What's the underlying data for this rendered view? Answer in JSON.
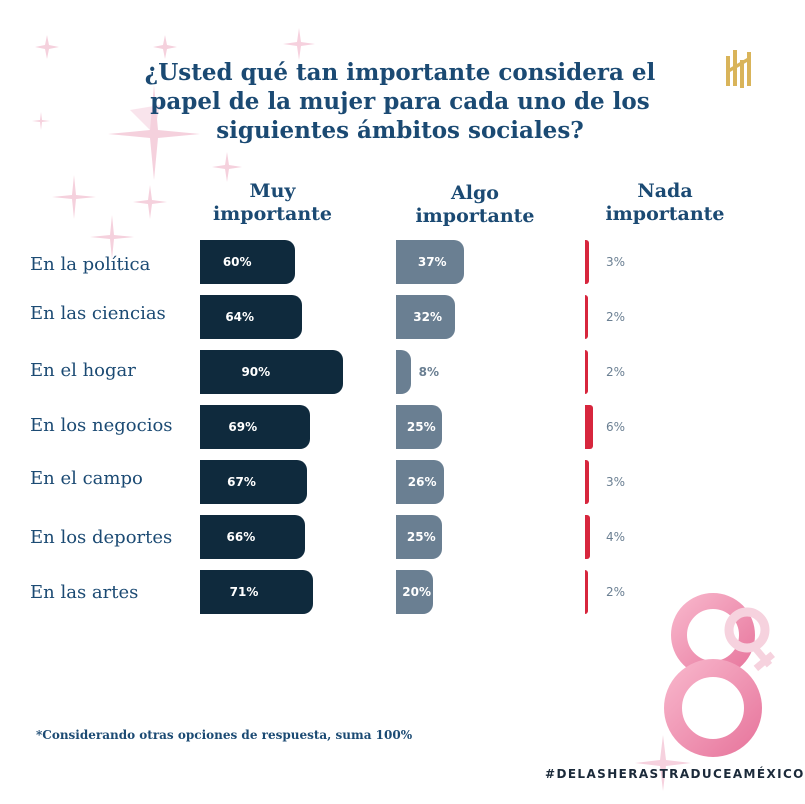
{
  "title": "¿Usted qué tan importante considera el papel de la mujer para cada uno de los siguientes ámbitos sociales?",
  "colors": {
    "muy": "#0f2a3d",
    "algo": "#6a7f92",
    "nada": "#d7263d",
    "text": "#1b4a73",
    "accent_pink": "#f29ab8",
    "logo_gold": "#d9b45a"
  },
  "chart_data": {
    "type": "bar",
    "orientation": "horizontal",
    "categories": [
      "En la política",
      "En las ciencias",
      "En el hogar",
      "En los negocios",
      "En el campo",
      "En los deportes",
      "En las artes"
    ],
    "series": [
      {
        "name": "Muy importante",
        "values": [
          60,
          64,
          90,
          69,
          67,
          66,
          71
        ],
        "labels": [
          "60%",
          "64%",
          "90%",
          "69%",
          "67%",
          "66%",
          "71%"
        ]
      },
      {
        "name": "Algo importante",
        "values": [
          37,
          32,
          8,
          25,
          26,
          25,
          20
        ],
        "labels": [
          "37%",
          "32%",
          "8%",
          "25%",
          "26%",
          "25%",
          "20%"
        ]
      },
      {
        "name": "Nada importante",
        "values": [
          3,
          2,
          2,
          6,
          3,
          4,
          2
        ],
        "labels": [
          "3%",
          "2%",
          "2%",
          "6%",
          "3%",
          "4%",
          "2%"
        ]
      }
    ],
    "unit": "%",
    "legend": "column headers above each series",
    "grid": false
  },
  "headers": {
    "muy": "Muy importante",
    "algo": "Algo importante",
    "nada": "Nada importante"
  },
  "footnote": "*Considerando otras opciones de respuesta, suma 100%",
  "hashtag": "#DELASHERASTRADUCEAMÉXICO",
  "icons": [
    "logo-mark",
    "sparkle-decoration",
    "women-day-8-icon"
  ]
}
